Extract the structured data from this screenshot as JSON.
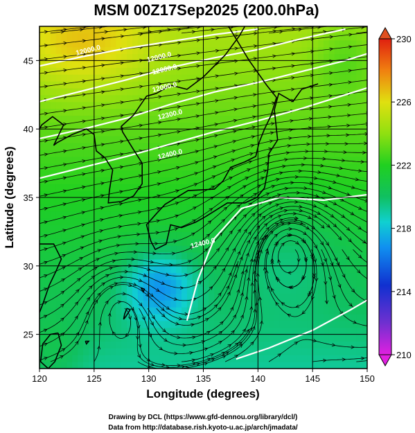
{
  "chart_data": {
    "type": "heatmap",
    "title": "MSM 00Z17Sep2025 (200.0hPa)",
    "xlabel": "Longitude (degrees)",
    "ylabel": "Latitude  (degrees)",
    "xlim": [
      120,
      150
    ],
    "ylim": [
      22.5,
      47.5
    ],
    "xticks": [
      120,
      125,
      130,
      135,
      140,
      145,
      150
    ],
    "xtick_labels": [
      "120",
      "125",
      "130",
      "135",
      "140",
      "145",
      "150"
    ],
    "yticks": [
      25,
      30,
      35,
      40,
      45
    ],
    "ytick_labels": [
      "25",
      "30",
      "35",
      "40",
      "45"
    ],
    "grid": true,
    "colorbar": {
      "min": 210,
      "max": 230,
      "ticks": [
        210,
        214,
        218,
        222,
        226,
        230
      ],
      "tick_labels": [
        "210",
        "214",
        "218",
        "222",
        "226",
        "230"
      ],
      "placement": "right"
    },
    "contour_labels": [
      {
        "lon": 124.5,
        "lat": 45.6,
        "text": "12000.0"
      },
      {
        "lon": 131.0,
        "lat": 45.1,
        "text": "12000.0"
      },
      {
        "lon": 131.5,
        "lat": 44.2,
        "text": "12000.0"
      },
      {
        "lon": 131.5,
        "lat": 42.9,
        "text": "12000.0"
      },
      {
        "lon": 132.0,
        "lat": 40.9,
        "text": "12300.0"
      },
      {
        "lon": 132.0,
        "lat": 38.0,
        "text": "12400.0"
      },
      {
        "lon": 135.0,
        "lat": 31.5,
        "text": "12400.0"
      }
    ],
    "features": {
      "anticyclone_centers": [
        {
          "lon": 142.8,
          "lat": 31.2
        },
        {
          "lon": 127.3,
          "lat": 26.9
        }
      ],
      "coolest_region": {
        "lon": 131.0,
        "lat": 28.5,
        "value": 217
      }
    }
  },
  "footer": {
    "line1": "Drawing by DCL (https://www.gfd-dennou.org/library/dcl/)",
    "line2": "Data from http://database.rish.kyoto-u.ac.jp/arch/jmadata/"
  }
}
